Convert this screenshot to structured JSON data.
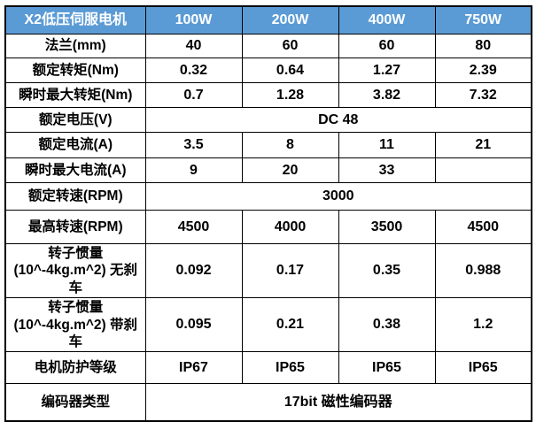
{
  "table": {
    "header": {
      "title": "X2低压伺服电机",
      "columns": [
        "100W",
        "200W",
        "400W",
        "750W"
      ]
    },
    "rows": [
      {
        "label": "法兰(mm)",
        "values": [
          "40",
          "60",
          "60",
          "80"
        ]
      },
      {
        "label": "额定转矩(Nm)",
        "values": [
          "0.32",
          "0.64",
          "1.27",
          "2.39"
        ]
      },
      {
        "label": "瞬时最大转矩(Nm)",
        "values": [
          "0.7",
          "1.28",
          "3.82",
          "7.32"
        ]
      },
      {
        "label": "额定电压(V)",
        "merged": "DC 48"
      },
      {
        "label": "额定电流(A)",
        "values": [
          "3.5",
          "8",
          "11",
          "21"
        ]
      },
      {
        "label": "瞬时最大电流(A)",
        "values": [
          "9",
          "20",
          "33",
          ""
        ]
      },
      {
        "label": "额定转速(RPM)",
        "merged": "3000"
      },
      {
        "label": "最高转速(RPM)",
        "values": [
          "4500",
          "4000",
          "3500",
          "4500"
        ]
      },
      {
        "label": "转子惯量(10^-4kg.m^2) 无刹车",
        "values": [
          "0.092",
          "0.17",
          "0.35",
          "0.988"
        ]
      },
      {
        "label": "转子惯量(10^-4kg.m^2) 带刹车",
        "values": [
          "0.095",
          "0.21",
          "0.38",
          "1.2"
        ]
      },
      {
        "label": "电机防护等级",
        "values": [
          "IP67",
          "IP65",
          "IP65",
          "IP65"
        ]
      },
      {
        "label": "编码器类型",
        "merged": "17bit 磁性编码器"
      }
    ],
    "colors": {
      "header_bg": "#5B9BD5",
      "header_text": "#FFFFFF",
      "border": "#000000",
      "body_text": "#000000",
      "body_bg": "#FFFFFF"
    }
  }
}
